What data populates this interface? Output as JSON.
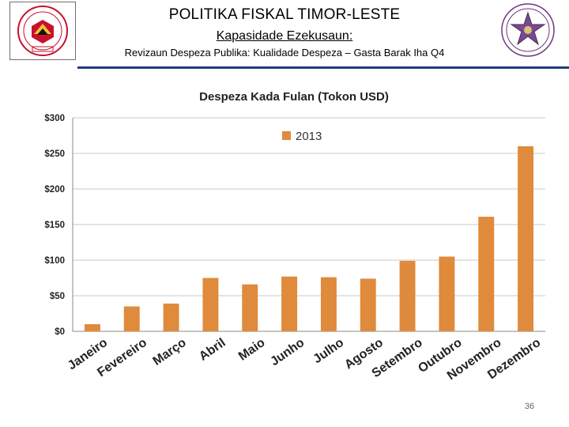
{
  "header": {
    "title": "POLITIKA FISKAL TIMOR-LESTE",
    "subtitle": "Kapasidade Ezekusaun:",
    "subline": "Revizaun Despeza Publika: Kualidade Despeza – Gasta Barak Iha Q4"
  },
  "logos": {
    "left_text": "REPÚBLICA DEMOCRÁTICA DE TIMOR-LESTE",
    "right_text": "Ministériu Finansas",
    "left_color": "#c8102e",
    "right_color": "#6b3a7d"
  },
  "page_number": "36",
  "chart_data": {
    "type": "bar",
    "title": "Despeza Kada Fulan (Tokon USD)",
    "categories": [
      "Janeiro",
      "Fevereiro",
      "Março",
      "Abril",
      "Maio",
      "Junho",
      "Julho",
      "Agosto",
      "Setembro",
      "Outubro",
      "Novembro",
      "Dezembro"
    ],
    "series": [
      {
        "name": "2013",
        "color": "#e08a3c",
        "values": [
          10,
          35,
          39,
          75,
          66,
          77,
          76,
          74,
          99,
          105,
          161,
          260
        ]
      }
    ],
    "ylim": [
      0,
      300
    ],
    "yticks": [
      0,
      50,
      100,
      150,
      200,
      250,
      300
    ],
    "ytick_labels": [
      "$0",
      "$50",
      "$100",
      "$150",
      "$200",
      "$250",
      "$300"
    ],
    "xlabel": "",
    "ylabel": "",
    "grid": true,
    "legend_position": "top-center"
  }
}
